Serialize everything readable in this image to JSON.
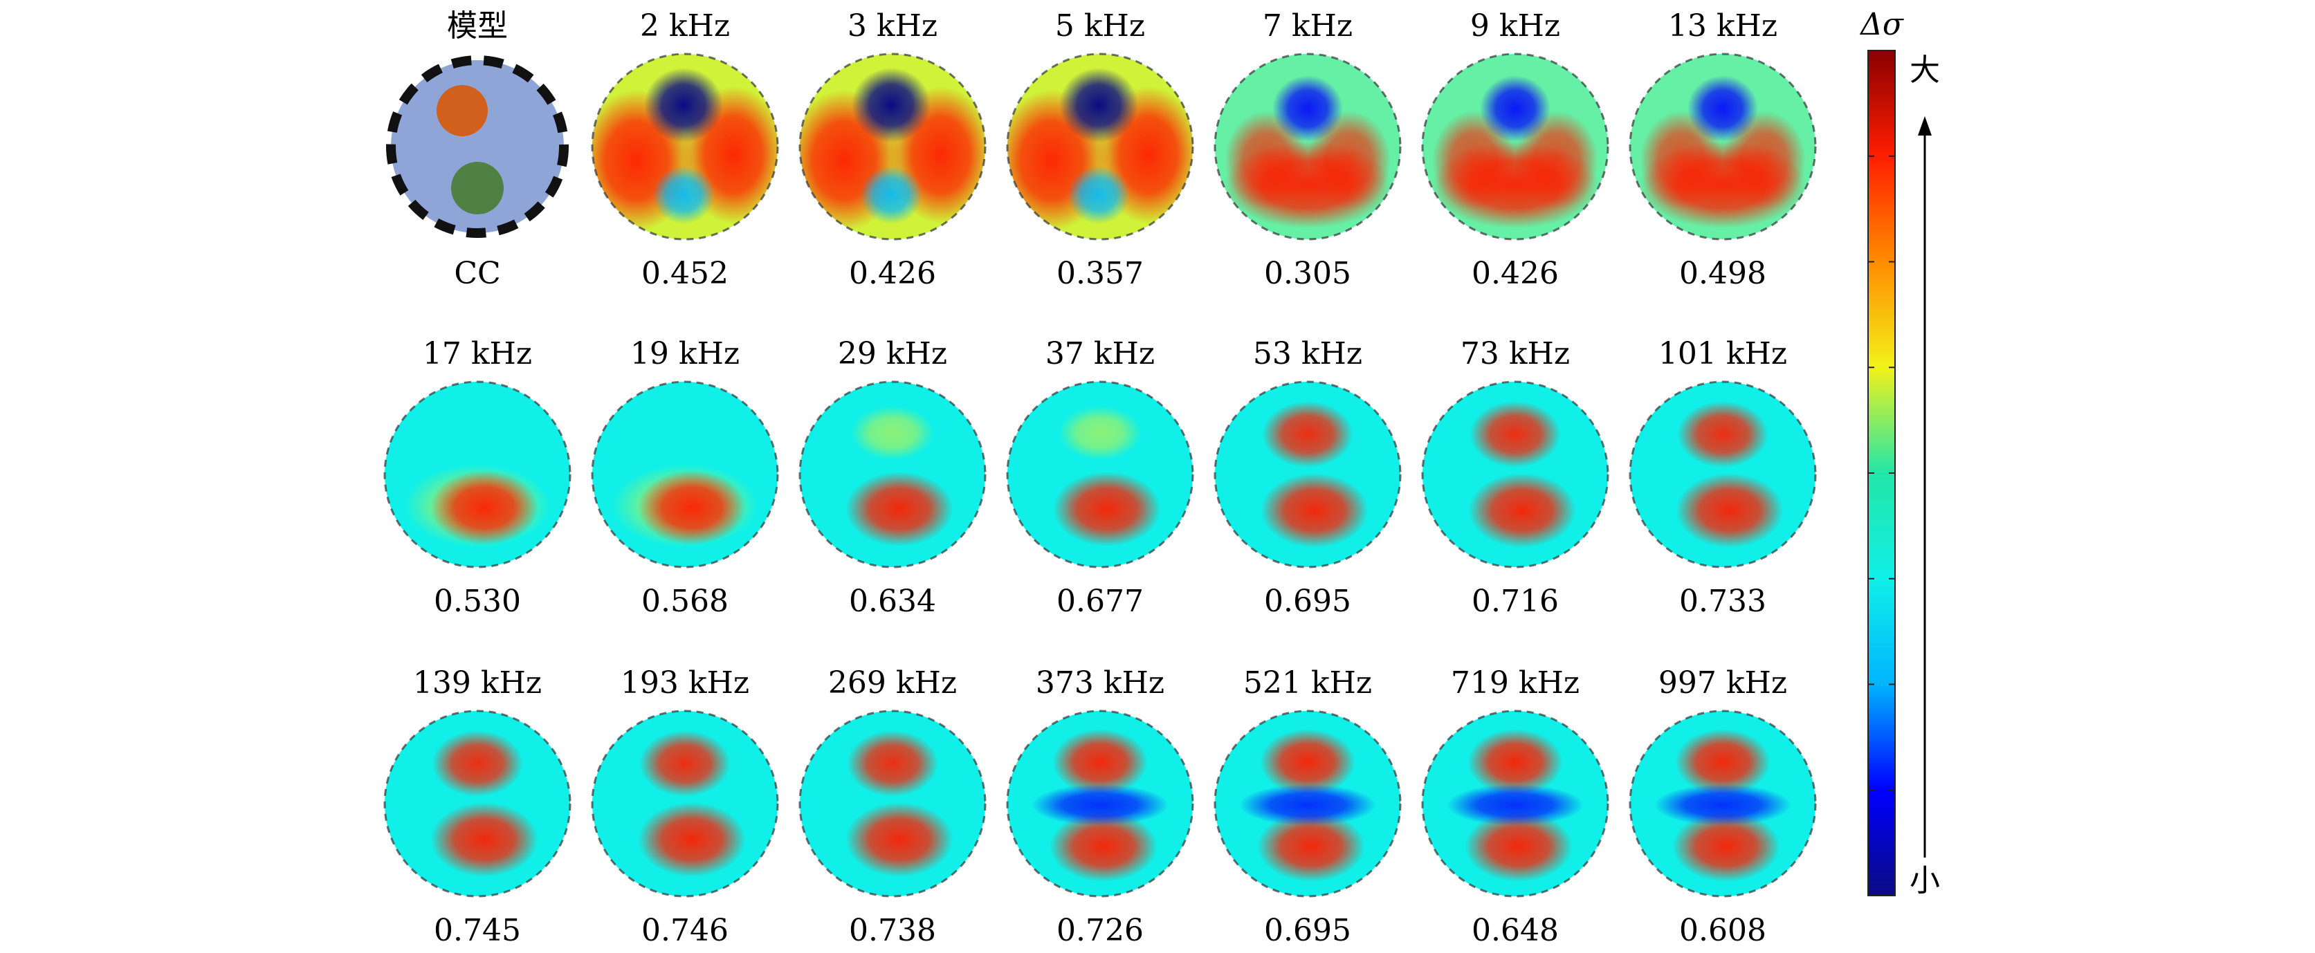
{
  "model": {
    "title": "模型",
    "metric_label": "CC",
    "background_color": "#8fa5d8",
    "orange_color": "#d0601c",
    "green_color": "#4f8044"
  },
  "colorbar": {
    "label": "Δσ",
    "high_label": "大",
    "low_label": "小",
    "colors": [
      "#0b0b84",
      "#0000ff",
      "#00b4ff",
      "#10f0e8",
      "#22e6a8",
      "#f2f21a",
      "#ff8c00",
      "#ff1e00",
      "#8b0000"
    ]
  },
  "panels": [
    {
      "freq": "2 kHz",
      "cc": "0.452",
      "pattern": "cross"
    },
    {
      "freq": "3 kHz",
      "cc": "0.426",
      "pattern": "cross"
    },
    {
      "freq": "5 kHz",
      "cc": "0.357",
      "pattern": "cross"
    },
    {
      "freq": "7 kHz",
      "cc": "0.305",
      "pattern": "horseshoe"
    },
    {
      "freq": "9 kHz",
      "cc": "0.426",
      "pattern": "horseshoe"
    },
    {
      "freq": "13 kHz",
      "cc": "0.498",
      "pattern": "horseshoe"
    },
    {
      "freq": "17 kHz",
      "cc": "0.530",
      "pattern": "ring"
    },
    {
      "freq": "19 kHz",
      "cc": "0.568",
      "pattern": "ring"
    },
    {
      "freq": "29 kHz",
      "cc": "0.634",
      "pattern": "faint"
    },
    {
      "freq": "37 kHz",
      "cc": "0.677",
      "pattern": "faint"
    },
    {
      "freq": "53 kHz",
      "cc": "0.695",
      "pattern": "two"
    },
    {
      "freq": "73 kHz",
      "cc": "0.716",
      "pattern": "two"
    },
    {
      "freq": "101 kHz",
      "cc": "0.733",
      "pattern": "two"
    },
    {
      "freq": "139 kHz",
      "cc": "0.745",
      "pattern": "two"
    },
    {
      "freq": "193 kHz",
      "cc": "0.746",
      "pattern": "two"
    },
    {
      "freq": "269 kHz",
      "cc": "0.738",
      "pattern": "two"
    },
    {
      "freq": "373 kHz",
      "cc": "0.726",
      "pattern": "twoBand"
    },
    {
      "freq": "521 kHz",
      "cc": "0.695",
      "pattern": "twoBand"
    },
    {
      "freq": "719 kHz",
      "cc": "0.648",
      "pattern": "twoBand"
    },
    {
      "freq": "997 kHz",
      "cc": "0.608",
      "pattern": "twoBand"
    }
  ]
}
